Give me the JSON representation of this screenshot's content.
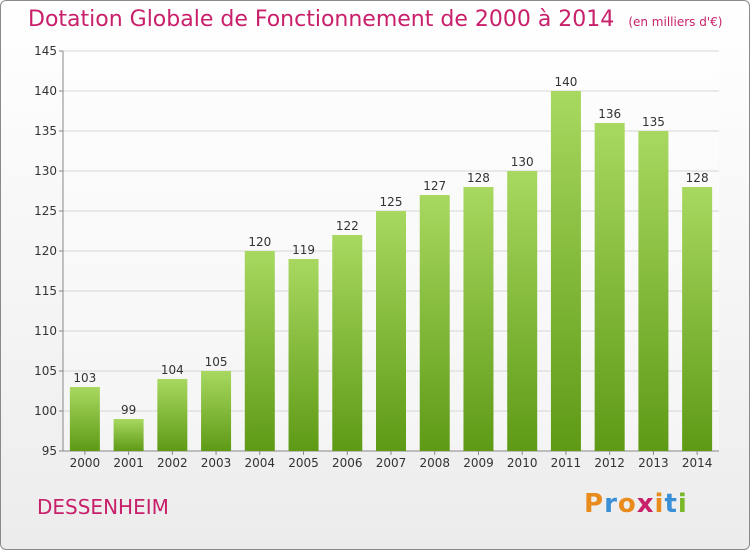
{
  "page": {
    "title": "Dotation Globale de Fonctionnement de 2000 à 2014",
    "unit": "(en milliers d'€)",
    "commune": "DESSENHEIM",
    "logo": {
      "letters": [
        "P",
        "r",
        "o",
        "x",
        "i",
        "t",
        "i"
      ],
      "colors": [
        "#e98b1d",
        "#3a8fd6",
        "#e98b1d",
        "#c8206a",
        "#e98b1d",
        "#3a8fd6",
        "#7ab82a"
      ]
    }
  },
  "chart_data": {
    "type": "bar",
    "title": "Dotation Globale de Fonctionnement de 2000 à 2014",
    "ylabel": "",
    "xlabel": "",
    "categories": [
      "2000",
      "2001",
      "2002",
      "2003",
      "2004",
      "2005",
      "2006",
      "2007",
      "2008",
      "2009",
      "2010",
      "2011",
      "2012",
      "2013",
      "2014"
    ],
    "values": [
      103,
      99,
      104,
      105,
      120,
      119,
      122,
      125,
      127,
      128,
      130,
      140,
      136,
      135,
      128
    ],
    "ylim": [
      95,
      145
    ],
    "yticks": [
      95,
      100,
      105,
      110,
      115,
      120,
      125,
      130,
      135,
      140,
      145
    ],
    "grid": true,
    "colors": {
      "bar_top": "#a8d860",
      "bar_bottom": "#5e9a16",
      "grid": "#d6d6d6",
      "axis": "#888888"
    }
  }
}
